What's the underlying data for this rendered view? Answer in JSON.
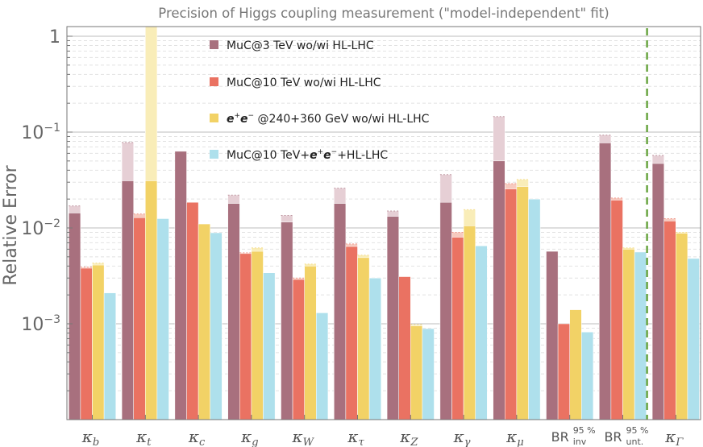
{
  "chart_data": {
    "type": "bar",
    "title": "Precision of Higgs coupling measurement (\"model-independent\" fit)",
    "ylabel": "Relative Error",
    "yscale": "log",
    "ylim": [
      0.0001,
      1.3
    ],
    "yticks": [
      {
        "value": 1,
        "label": "1"
      },
      {
        "value": 0.1,
        "base": "10",
        "exp": "−1"
      },
      {
        "value": 0.01,
        "base": "10",
        "exp": "−2"
      },
      {
        "value": 0.001,
        "base": "10",
        "exp": "−3"
      }
    ],
    "categories": [
      {
        "main": "κ",
        "sub": "b"
      },
      {
        "main": "κ",
        "sub": "t"
      },
      {
        "main": "κ",
        "sub": "c"
      },
      {
        "main": "κ",
        "sub": "g"
      },
      {
        "main": "κ",
        "sub": "W"
      },
      {
        "main": "κ",
        "sub": "τ"
      },
      {
        "main": "κ",
        "sub": "Z"
      },
      {
        "main": "κ",
        "sub": "γ"
      },
      {
        "main": "κ",
        "sub": "μ"
      },
      {
        "main": "BR",
        "sup": "95 %",
        "sub": "inv"
      },
      {
        "main": "BR",
        "sup": "95 %",
        "sub": "unt."
      },
      {
        "main": "κ",
        "sub": "Γ"
      }
    ],
    "series": [
      {
        "name": "MuC@3 TeV wo/wi HL-LHC",
        "color": "#a8707e",
        "light": "#e6cfd5",
        "wo": [
          0.017,
          0.078,
          0.063,
          0.022,
          0.0135,
          0.026,
          0.015,
          0.036,
          0.145,
          0.0057,
          0.093,
          0.057
        ],
        "wi": [
          0.0143,
          0.031,
          0.063,
          0.018,
          0.0115,
          0.018,
          0.0132,
          0.0185,
          0.05,
          0.0057,
          0.077,
          0.047
        ]
      },
      {
        "name": "MuC@10 TeV wo/wi HL-LHC",
        "color": "#ea7262",
        "light": "#f7cabf",
        "wo": [
          0.0039,
          0.014,
          0.0185,
          0.0055,
          0.003,
          0.0068,
          0.0031,
          0.009,
          0.029,
          0.001,
          0.0205,
          0.0125
        ],
        "wi": [
          0.0038,
          0.0128,
          0.0185,
          0.0054,
          0.0029,
          0.0064,
          0.0031,
          0.008,
          0.0255,
          0.001,
          0.0195,
          0.0118
        ]
      },
      {
        "name": "e⁺e⁻ @240+360 GeV wo/wi HL-LHC",
        "label_parts": {
          "e1": "e",
          "sup1": "+",
          "e2": "e",
          "sup2": "−",
          "rest": "@240+360 GeV wo/wi HL-LHC"
        },
        "color": "#f2d266",
        "light": "#f9edb8",
        "wo": [
          0.0043,
          1.3,
          0.011,
          0.0062,
          0.0042,
          0.0052,
          0.00098,
          0.0155,
          0.032,
          0.0014,
          0.0062,
          0.009
        ],
        "wi": [
          0.0041,
          0.031,
          0.011,
          0.0057,
          0.004,
          0.0049,
          0.00095,
          0.0105,
          0.027,
          0.0014,
          0.006,
          0.0088
        ]
      },
      {
        "name": "MuC@10 TeV+e⁺e⁻+HL-LHC",
        "label_parts": {
          "pre": "MuC@10 TeV+",
          "e1": "e",
          "sup1": "+",
          "e2": "e",
          "sup2": "−",
          "rest": "+HL-LHC"
        },
        "color": "#aee0ec",
        "light": "#aee0ec",
        "wo": [
          0.0021,
          0.0125,
          0.0089,
          0.0034,
          0.0013,
          0.003,
          0.00089,
          0.0065,
          0.02,
          0.00082,
          0.0056,
          0.0048
        ],
        "wi": [
          0.0021,
          0.0125,
          0.0089,
          0.0034,
          0.0013,
          0.003,
          0.00089,
          0.0065,
          0.02,
          0.00082,
          0.0056,
          0.0048
        ]
      }
    ],
    "separator_after_category": 10,
    "legend_position": "top-left",
    "grid": true
  }
}
